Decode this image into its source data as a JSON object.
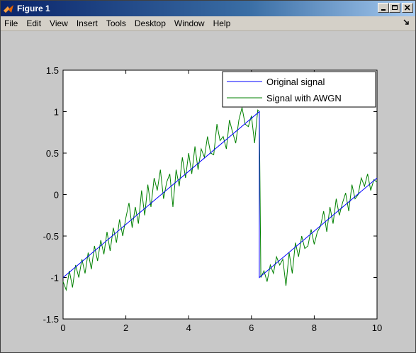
{
  "window": {
    "title": "Figure 1"
  },
  "menu": {
    "items": [
      "File",
      "Edit",
      "View",
      "Insert",
      "Tools",
      "Desktop",
      "Window",
      "Help"
    ]
  },
  "icons": {
    "app": "matlab-icon",
    "minimize": "minimize-icon",
    "maximize": "maximize-icon",
    "close": "close-icon",
    "dock": "dock-arrow-icon"
  },
  "chart_data": {
    "type": "line",
    "title": "",
    "xlabel": "",
    "ylabel": "",
    "xlim": [
      0,
      10
    ],
    "ylim": [
      -1.5,
      1.5
    ],
    "xticks": [
      "0",
      "2",
      "4",
      "6",
      "8",
      "10"
    ],
    "yticks": [
      "1.5",
      "1",
      "0.5",
      "0",
      "-0.5",
      "-1",
      "-1.5"
    ],
    "grid": false,
    "legend_position": "top-right",
    "series": [
      {
        "name": "Original signal",
        "color": "#0000ff",
        "x": [
          0,
          6.25,
          6.25,
          10
        ],
        "y": [
          -1.0,
          1.0,
          -1.0,
          0.2
        ]
      },
      {
        "name": "Signal with AWGN",
        "color": "#008000",
        "x": [
          0,
          0.1,
          0.2,
          0.3,
          0.4,
          0.5,
          0.6,
          0.7,
          0.8,
          0.9,
          1.0,
          1.1,
          1.2,
          1.3,
          1.4,
          1.5,
          1.6,
          1.7,
          1.8,
          1.9,
          2.0,
          2.1,
          2.2,
          2.3,
          2.4,
          2.5,
          2.6,
          2.7,
          2.8,
          2.9,
          3.0,
          3.1,
          3.2,
          3.3,
          3.4,
          3.5,
          3.6,
          3.7,
          3.8,
          3.9,
          4.0,
          4.1,
          4.2,
          4.3,
          4.4,
          4.5,
          4.6,
          4.7,
          4.8,
          4.9,
          5.0,
          5.1,
          5.2,
          5.3,
          5.4,
          5.5,
          5.6,
          5.7,
          5.8,
          5.9,
          6.0,
          6.1,
          6.2,
          6.25,
          6.3,
          6.4,
          6.5,
          6.6,
          6.7,
          6.8,
          6.9,
          7.0,
          7.1,
          7.2,
          7.3,
          7.4,
          7.5,
          7.6,
          7.7,
          7.8,
          7.9,
          8.0,
          8.1,
          8.2,
          8.3,
          8.4,
          8.5,
          8.6,
          8.7,
          8.8,
          8.9,
          9.0,
          9.1,
          9.2,
          9.3,
          9.4,
          9.5,
          9.6,
          9.7,
          9.8,
          9.9,
          10.0
        ],
        "y": [
          -1.05,
          -1.15,
          -0.92,
          -1.12,
          -0.85,
          -1.0,
          -0.78,
          -0.95,
          -0.7,
          -0.9,
          -0.62,
          -0.8,
          -0.55,
          -0.72,
          -0.45,
          -0.68,
          -0.4,
          -0.58,
          -0.3,
          -0.5,
          -0.28,
          -0.1,
          -0.4,
          -0.15,
          -0.35,
          0.05,
          -0.25,
          0.12,
          -0.15,
          0.2,
          0.05,
          0.3,
          -0.05,
          0.15,
          0.25,
          -0.15,
          0.3,
          0.1,
          0.45,
          0.2,
          0.5,
          0.25,
          0.58,
          0.3,
          0.55,
          0.45,
          0.7,
          0.5,
          0.48,
          0.85,
          0.65,
          0.7,
          0.55,
          0.9,
          0.75,
          0.62,
          0.9,
          1.05,
          0.85,
          0.82,
          0.95,
          0.62,
          1.02,
          1.0,
          -1.0,
          -0.92,
          -1.05,
          -0.85,
          -0.95,
          -0.75,
          -0.85,
          -0.78,
          -1.1,
          -0.7,
          -0.95,
          -0.58,
          -0.75,
          -0.5,
          -0.65,
          -0.62,
          -0.42,
          -0.6,
          -0.45,
          -0.38,
          -0.2,
          -0.45,
          -0.15,
          -0.35,
          -0.05,
          -0.25,
          -0.1,
          0.02,
          -0.2,
          0.12,
          -0.05,
          0.0,
          0.2,
          0.1,
          0.25,
          0.05,
          0.18,
          0.15
        ]
      }
    ]
  }
}
